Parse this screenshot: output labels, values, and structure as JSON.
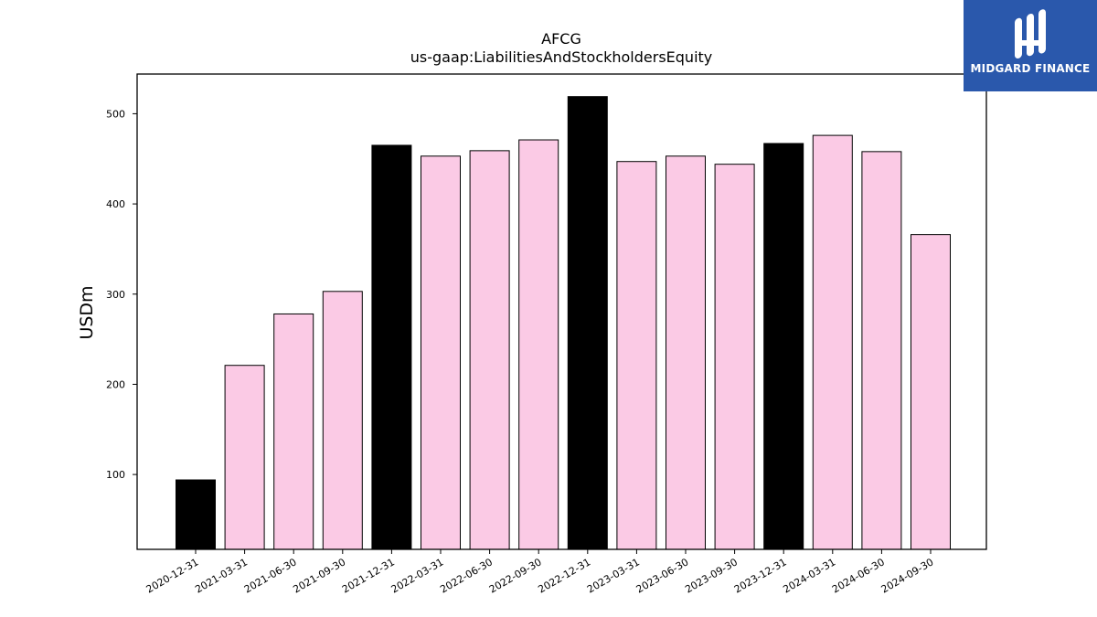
{
  "chart_data": {
    "type": "bar",
    "title": "AFCG",
    "subtitle": "us-gaap:LiabilitiesAndStockholdersEquity",
    "xlabel": "",
    "ylabel": "USDm",
    "ylim": [
      17,
      544
    ],
    "yticks": [
      100,
      200,
      300,
      400,
      500
    ],
    "categories": [
      "2020-12-31",
      "2021-03-31",
      "2021-06-30",
      "2021-09-30",
      "2021-12-31",
      "2022-03-31",
      "2022-06-30",
      "2022-09-30",
      "2022-12-31",
      "2023-03-31",
      "2023-06-30",
      "2023-09-30",
      "2023-12-31",
      "2024-03-31",
      "2024-06-30",
      "2024-09-30"
    ],
    "values": [
      94,
      221,
      278,
      303,
      465,
      453,
      459,
      471,
      519,
      447,
      453,
      444,
      467,
      476,
      458,
      366
    ],
    "bar_colors": [
      "#000000",
      "#fbcae5",
      "#fbcae5",
      "#fbcae5",
      "#000000",
      "#fbcae5",
      "#fbcae5",
      "#fbcae5",
      "#000000",
      "#fbcae5",
      "#fbcae5",
      "#fbcae5",
      "#000000",
      "#fbcae5",
      "#fbcae5",
      "#fbcae5"
    ],
    "grid": false,
    "legend": "none"
  },
  "logo": {
    "text": "MIDGARD FINANCE",
    "background": "#2a58ac"
  }
}
